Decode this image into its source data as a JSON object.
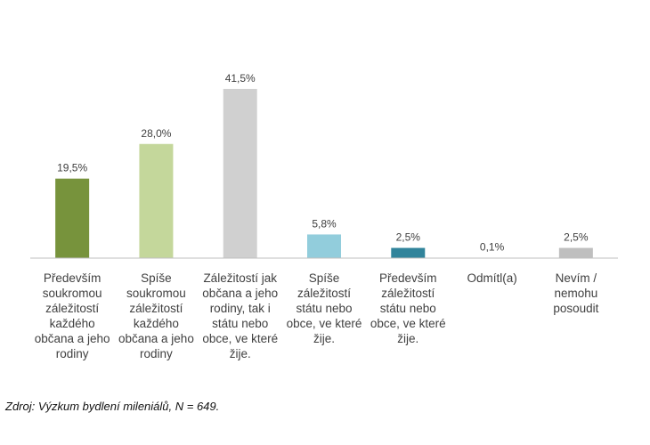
{
  "chart_data": {
    "type": "bar",
    "title": "",
    "xlabel": "",
    "ylabel": "",
    "ylim": [
      0,
      45
    ],
    "grid": false,
    "categories": [
      [
        "Především",
        "soukromou",
        "záležitostí",
        "každého",
        "občana a jeho",
        "rodiny"
      ],
      [
        "Spíše",
        "soukromou",
        "záležitostí",
        "každého",
        "občana a jeho",
        "rodiny"
      ],
      [
        "Záležitostí jak",
        "občana a jeho",
        "rodiny, tak i",
        "státu nebo",
        "obce, ve které",
        "žije."
      ],
      [
        "Spíše",
        "záležitostí",
        "státu nebo",
        "obce, ve které",
        "žije."
      ],
      [
        "Především",
        "záležitostí",
        "státu nebo",
        "obce, ve které",
        "žije."
      ],
      [
        "Odmítl(a)"
      ],
      [
        "Nevím /",
        "nemohu",
        "posoudit"
      ]
    ],
    "values": [
      19.5,
      28.0,
      41.5,
      5.8,
      2.5,
      0.1,
      2.5
    ],
    "value_labels": [
      "19,5%",
      "28,0%",
      "41,5%",
      "5,8%",
      "2,5%",
      "0,1%",
      "2,5%"
    ],
    "colors": [
      "#77933c",
      "#c4d79b",
      "#d0d0d0",
      "#92cddc",
      "#31849b",
      "#77933c",
      "#bfbfbf"
    ],
    "axis_color": "#bfbfbf"
  },
  "source": "Zdroj: Výzkum bydlení mileniálů, N = 649."
}
